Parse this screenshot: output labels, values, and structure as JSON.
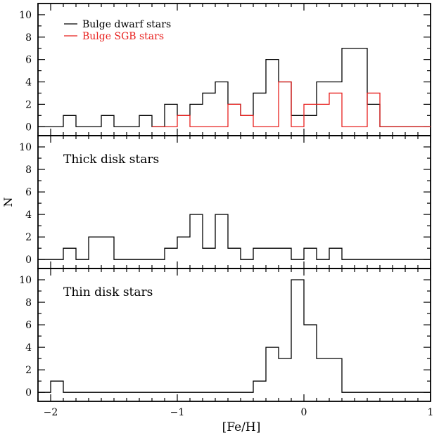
{
  "chart_data": [
    {
      "type": "step-histogram",
      "panel": "top",
      "xlim": [
        -2.1,
        1.0
      ],
      "ylim": [
        -0.8,
        11
      ],
      "yticks": [
        0,
        2,
        4,
        6,
        8,
        10
      ],
      "bin_edges": [
        -2.1,
        -2.0,
        -1.9,
        -1.8,
        -1.7,
        -1.6,
        -1.5,
        -1.4,
        -1.3,
        -1.2,
        -1.1,
        -1.0,
        -0.9,
        -0.8,
        -0.7,
        -0.6,
        -0.5,
        -0.4,
        -0.3,
        -0.2,
        -0.1,
        0.0,
        0.1,
        0.2,
        0.3,
        0.4,
        0.5,
        0.6,
        0.7,
        0.8,
        0.9,
        1.0
      ],
      "legend_placement": "top-left",
      "series": [
        {
          "name": "Bulge dwarf stars",
          "color": "#000000",
          "values": [
            0,
            0,
            1,
            0,
            0,
            1,
            0,
            0,
            1,
            0,
            2,
            1,
            2,
            3,
            4,
            2,
            1,
            3,
            6,
            4,
            1,
            1,
            4,
            4,
            7,
            7,
            2,
            0,
            0,
            0,
            0
          ]
        },
        {
          "name": "Bulge SGB stars",
          "color": "#e8201e",
          "values": [
            null,
            null,
            null,
            null,
            null,
            null,
            null,
            null,
            null,
            0,
            0,
            1,
            0,
            0,
            0,
            2,
            1,
            0,
            0,
            4,
            0,
            2,
            2,
            3,
            0,
            0,
            3,
            0,
            0,
            0,
            0
          ]
        }
      ]
    },
    {
      "type": "step-histogram",
      "panel": "middle",
      "annotation": "Thick disk stars",
      "ylabel": "N",
      "xlim": [
        -2.1,
        1.0
      ],
      "ylim": [
        -0.8,
        11
      ],
      "yticks": [
        0,
        2,
        4,
        6,
        8,
        10
      ],
      "bin_edges": [
        -2.1,
        -2.0,
        -1.9,
        -1.8,
        -1.7,
        -1.6,
        -1.5,
        -1.4,
        -1.3,
        -1.2,
        -1.1,
        -1.0,
        -0.9,
        -0.8,
        -0.7,
        -0.6,
        -0.5,
        -0.4,
        -0.3,
        -0.2,
        -0.1,
        0.0,
        0.1,
        0.2,
        0.3,
        0.4,
        0.5,
        0.6,
        0.7,
        0.8,
        0.9,
        1.0
      ],
      "series": [
        {
          "color": "#000000",
          "values": [
            0,
            0,
            1,
            0,
            2,
            2,
            0,
            0,
            0,
            0,
            1,
            2,
            4,
            1,
            4,
            1,
            0,
            1,
            1,
            1,
            0,
            1,
            0,
            1,
            0,
            0,
            0,
            0,
            0,
            0,
            0
          ]
        }
      ]
    },
    {
      "type": "step-histogram",
      "panel": "bottom",
      "annotation": "Thin disk stars",
      "xlabel": "[Fe/H]",
      "xlim": [
        -2.1,
        1.0
      ],
      "ylim": [
        -0.8,
        11
      ],
      "xticks": [
        -2,
        -1,
        0,
        1
      ],
      "xtick_labels": [
        "−2",
        "−1",
        "0",
        "1"
      ],
      "yticks": [
        0,
        2,
        4,
        6,
        8,
        10
      ],
      "bin_edges": [
        -2.1,
        -2.0,
        -1.9,
        -1.8,
        -1.7,
        -1.6,
        -1.5,
        -1.4,
        -1.3,
        -1.2,
        -1.1,
        -1.0,
        -0.9,
        -0.8,
        -0.7,
        -0.6,
        -0.5,
        -0.4,
        -0.3,
        -0.2,
        -0.1,
        0.0,
        0.1,
        0.2,
        0.3,
        0.4,
        0.5,
        0.6,
        0.7,
        0.8,
        0.9,
        1.0
      ],
      "series": [
        {
          "color": "#000000",
          "values": [
            0,
            1,
            0,
            0,
            0,
            0,
            0,
            0,
            0,
            0,
            0,
            0,
            0,
            0,
            0,
            0,
            0,
            1,
            4,
            3,
            10,
            6,
            3,
            3,
            0,
            0,
            0,
            0,
            0,
            0,
            0
          ]
        }
      ]
    }
  ]
}
